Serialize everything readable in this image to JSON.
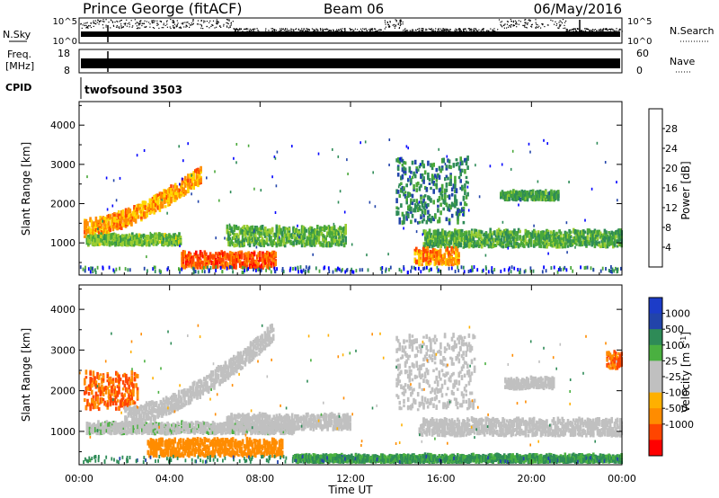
{
  "header": {
    "title": "Prince George (fitACF)",
    "beam": "Beam 06",
    "date": "06/May/2016"
  },
  "strip": {
    "nsky_label": "N.Sky",
    "nsky_ticks": [
      "10^5",
      "10^0"
    ],
    "nsearch_label": "N.Search",
    "nsearch_ticks": [
      "10^5",
      "10^0"
    ],
    "freq_label": "Freq.",
    "freq_unit": "[MHz]",
    "freq_ticks": [
      "18",
      "8"
    ],
    "nave_label": "Nave",
    "nave_ticks": [
      "60",
      "0"
    ],
    "cpid_label": "CPID",
    "cpid_value": "twofsound 3503"
  },
  "colors": {
    "power_scale": [
      "#0000ff",
      "#2244aa",
      "#2e8b57",
      "#4aa83a",
      "#9acd32",
      "#ffd700",
      "#ff8c00",
      "#ff4500",
      "#ff0000"
    ],
    "velocity_scale": [
      "#ff0000",
      "#ff4500",
      "#ff8c00",
      "#ffb000",
      "#c0c0c0",
      "#c0c0c0",
      "#4ab040",
      "#2e8b57",
      "#2244aa",
      "#1c3cc8"
    ]
  },
  "chart_data": [
    {
      "type": "heatmap",
      "name": "power-panel",
      "xlabel": "",
      "ylabel": "Slant Range [km]",
      "x_ticks": [
        "00:00",
        "04:00",
        "08:00",
        "12:00",
        "16:00",
        "20:00",
        "00:00"
      ],
      "xlim_hours": [
        0,
        24
      ],
      "y_ticks": [
        1000,
        2000,
        3000,
        4000
      ],
      "ylim": [
        180,
        4600
      ],
      "colorbar": {
        "label": "Power [dB]",
        "ticks": [
          "4",
          "8",
          "12",
          "16",
          "20",
          "24",
          "28"
        ],
        "range": [
          0,
          32
        ]
      },
      "features": [
        {
          "t0": 0.2,
          "t1": 5.4,
          "r0": 1300,
          "r1": 2700,
          "level": 22,
          "shape": "arc"
        },
        {
          "t0": 0.3,
          "t1": 4.5,
          "r0": 900,
          "r1": 1150,
          "level": 14
        },
        {
          "t0": 4.5,
          "t1": 8.7,
          "r0": 320,
          "r1": 700,
          "level": 26
        },
        {
          "t0": 6.5,
          "t1": 11.8,
          "r0": 880,
          "r1": 1350,
          "level": 13
        },
        {
          "t0": 14.0,
          "t1": 17.2,
          "r0": 1450,
          "r1": 3100,
          "level": 9
        },
        {
          "t0": 15.2,
          "t1": 24.0,
          "r0": 850,
          "r1": 1250,
          "level": 12
        },
        {
          "t0": 14.8,
          "t1": 16.8,
          "r0": 400,
          "r1": 800,
          "level": 23
        },
        {
          "t0": 18.6,
          "t1": 21.2,
          "r0": 2050,
          "r1": 2250,
          "level": 11
        }
      ]
    },
    {
      "type": "heatmap",
      "name": "velocity-panel",
      "xlabel": "Time UT",
      "ylabel": "Slant Range [km]",
      "x_ticks": [
        "00:00",
        "04:00",
        "08:00",
        "12:00",
        "16:00",
        "20:00",
        "00:00"
      ],
      "xlim_hours": [
        0,
        24
      ],
      "y_ticks": [
        1000,
        2000,
        3000,
        4000
      ],
      "ylim": [
        180,
        4600
      ],
      "colorbar": {
        "label": "Velocity [m s^-1]",
        "ticks": [
          "1000",
          "500",
          "100",
          "25",
          "-25",
          "-100",
          "-500",
          "-1000"
        ]
      },
      "features": [
        {
          "t0": 0.2,
          "t1": 2.6,
          "r0": 1500,
          "r1": 2400,
          "velocity": -300
        },
        {
          "t0": 2.0,
          "t1": 8.6,
          "r0": 1300,
          "r1": 3400,
          "velocity": 0,
          "shape": "arc"
        },
        {
          "t0": 0.3,
          "t1": 9.5,
          "r0": 900,
          "r1": 1150,
          "velocity": 10
        },
        {
          "t0": 3.0,
          "t1": 9.0,
          "r0": 350,
          "r1": 750,
          "velocity": -150
        },
        {
          "t0": 6.5,
          "t1": 12.0,
          "r0": 1000,
          "r1": 1350,
          "velocity": 0
        },
        {
          "t0": 14.0,
          "t1": 17.5,
          "r0": 1500,
          "r1": 3300,
          "velocity": 0
        },
        {
          "t0": 15.0,
          "t1": 24.0,
          "r0": 850,
          "r1": 1250,
          "velocity": 5
        },
        {
          "t0": 9.5,
          "t1": 24.0,
          "r0": 200,
          "r1": 350,
          "velocity": 60
        },
        {
          "t0": 18.8,
          "t1": 21.0,
          "r0": 2000,
          "r1": 2250,
          "velocity": 0
        },
        {
          "t0": 23.3,
          "t1": 24.0,
          "r0": 2500,
          "r1": 2900,
          "velocity": -300
        }
      ]
    }
  ]
}
